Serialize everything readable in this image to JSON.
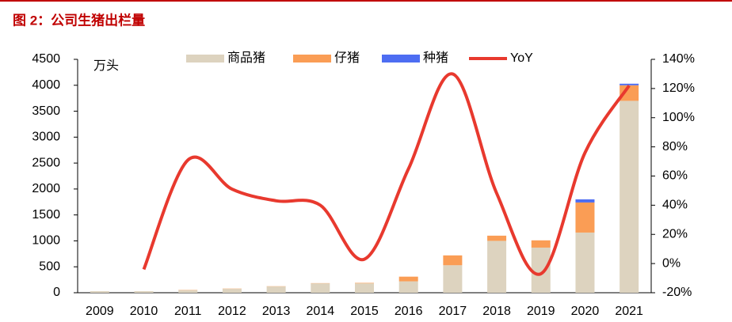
{
  "chart_data": {
    "type": "bar-line",
    "title": "图 2：公司生猪出栏量",
    "y_label": "万头",
    "categories": [
      "2009",
      "2010",
      "2011",
      "2012",
      "2013",
      "2014",
      "2015",
      "2016",
      "2017",
      "2018",
      "2019",
      "2020",
      "2021"
    ],
    "series": [
      {
        "name": "商品猪",
        "type": "bar",
        "color": "#ddd3bf",
        "values": [
          30,
          30,
          50,
          75,
          120,
          180,
          180,
          220,
          530,
          1000,
          870,
          1160,
          3700
        ]
      },
      {
        "name": "仔猪",
        "type": "bar",
        "color": "#fa9d55",
        "values": [
          0,
          0,
          5,
          5,
          5,
          5,
          10,
          90,
          190,
          100,
          140,
          580,
          300
        ]
      },
      {
        "name": "种猪",
        "type": "bar",
        "color": "#4d6df2",
        "values": [
          0,
          0,
          0,
          0,
          0,
          0,
          0,
          0,
          0,
          0,
          0,
          60,
          30
        ]
      },
      {
        "name": "YoY",
        "type": "line",
        "axis": "y2",
        "color": "#e8392e",
        "values": [
          null,
          -4,
          71,
          51,
          43,
          40,
          3,
          65,
          130,
          48,
          -7,
          76,
          122
        ]
      }
    ],
    "ylim": [
      0,
      4500
    ],
    "yticks": [
      0,
      500,
      1000,
      1500,
      2000,
      2500,
      3000,
      3500,
      4000,
      4500
    ],
    "y2lim": [
      -20,
      140
    ],
    "y2ticks": [
      {
        "value": -20,
        "label": "-20%"
      },
      {
        "value": 0,
        "label": "0%"
      },
      {
        "value": 20,
        "label": "20%"
      },
      {
        "value": 40,
        "label": "40%"
      },
      {
        "value": 60,
        "label": "60%"
      },
      {
        "value": 80,
        "label": "80%"
      },
      {
        "value": 100,
        "label": "100%"
      },
      {
        "value": 120,
        "label": "120%"
      },
      {
        "value": 140,
        "label": "140%"
      }
    ],
    "grid": false
  }
}
